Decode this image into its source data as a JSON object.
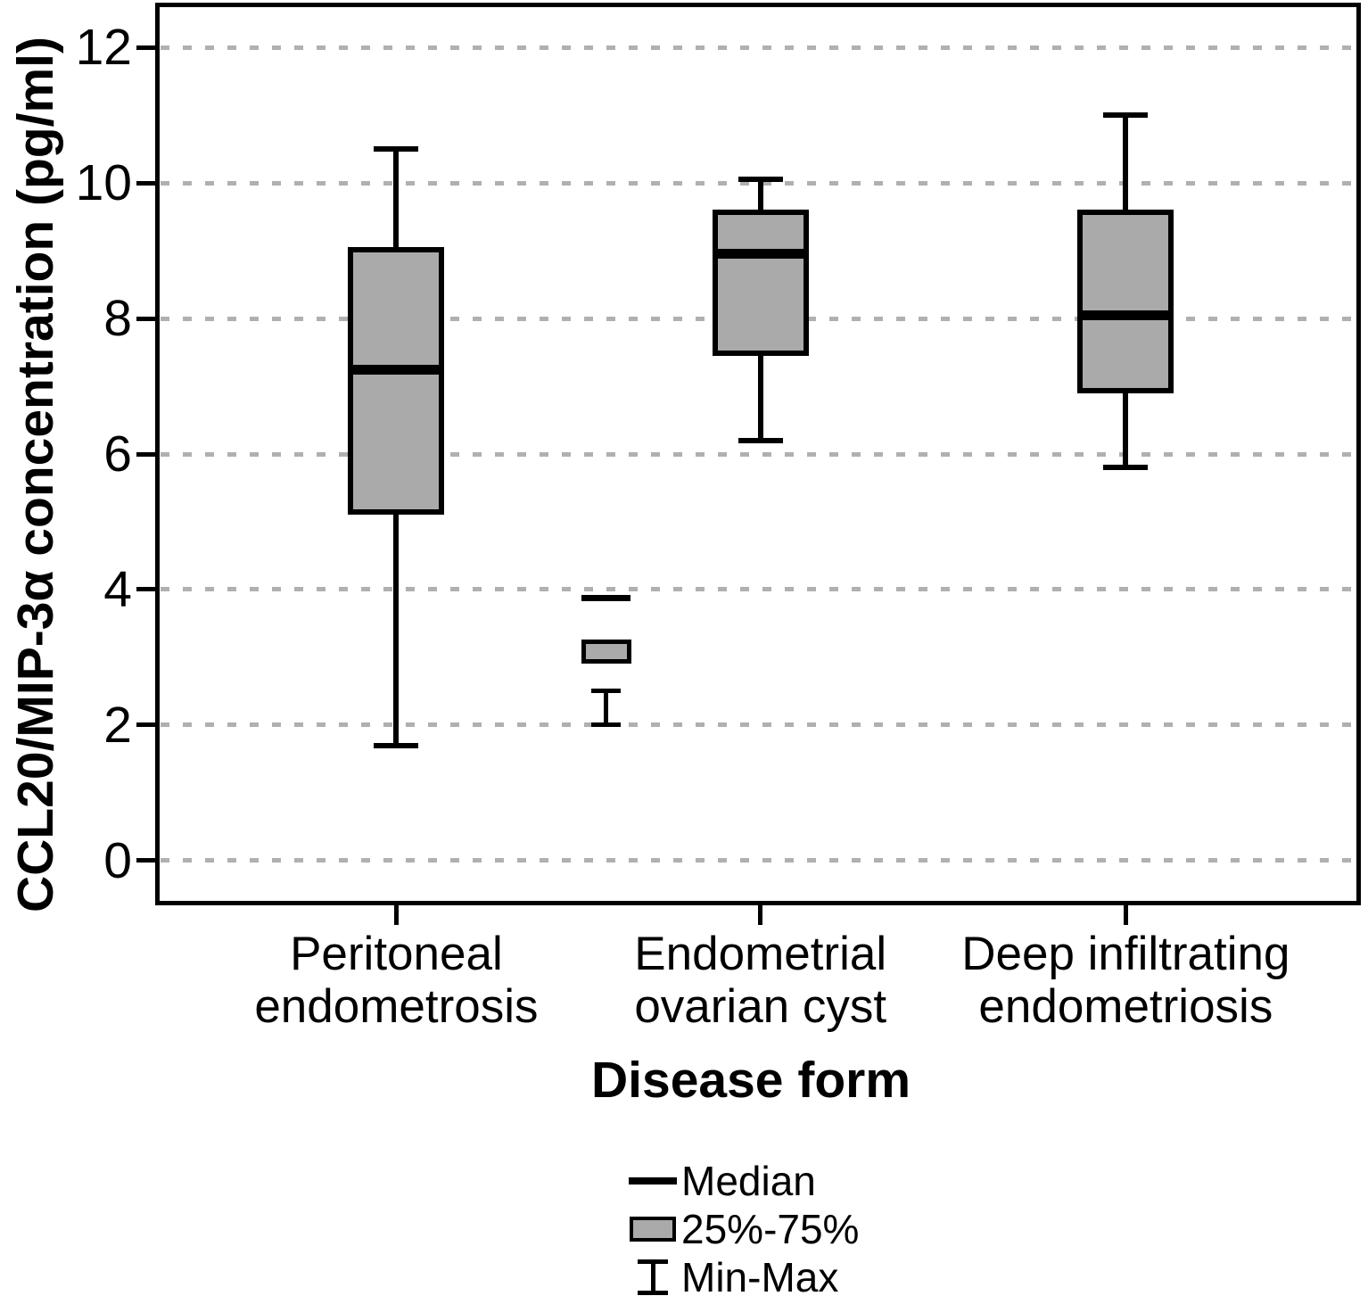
{
  "chart_data": {
    "type": "boxplot",
    "title": "",
    "xlabel": "Disease form",
    "ylabel": "CCL20/MIP-3α concentration (pg/ml)",
    "ylim": [
      -0.66,
      12.66
    ],
    "yticks": [
      0,
      2,
      4,
      6,
      8,
      10,
      12
    ],
    "grid": "horizontal-dashed",
    "legend_position": "bottom-center",
    "categories": [
      {
        "lines": [
          "Peritoneal",
          "endometrosis"
        ],
        "x_fraction": 0.2
      },
      {
        "lines": [
          "Endometrial",
          "ovarian cyst"
        ],
        "x_fraction": 0.502
      },
      {
        "lines": [
          "Deep infiltrating",
          "endometriosis"
        ],
        "x_fraction": 0.805
      }
    ],
    "series": [
      {
        "name": "Peritoneal endometrosis",
        "min": 1.7,
        "q1": 5.1,
        "median": 7.25,
        "q3": 9.05,
        "max": 10.5,
        "x_fraction": 0.2
      },
      {
        "name": "Endometrial ovarian cyst",
        "min": 6.2,
        "q1": 7.45,
        "median": 8.95,
        "q3": 9.6,
        "max": 10.05,
        "x_fraction": 0.502
      },
      {
        "name": "Deep infiltrating endometriosis",
        "min": 5.8,
        "q1": 6.9,
        "median": 8.05,
        "q3": 9.6,
        "max": 11.0,
        "x_fraction": 0.805
      }
    ],
    "inset_symbols": {
      "x_fraction": 0.374,
      "median_value": 3.88,
      "box_top": 3.26,
      "box_bottom": 2.91,
      "whisker_top": 2.54,
      "whisker_bottom": 2.04
    },
    "legend": [
      {
        "symbol": "median-line",
        "label": "Median"
      },
      {
        "symbol": "iqr-box",
        "label": "25%-75%"
      },
      {
        "symbol": "min-max-whisker",
        "label": "Min-Max"
      }
    ],
    "colors": {
      "box_fill": "#aaaaaa",
      "stroke": "#000000",
      "gridline": "#b0b0b0",
      "background": "#ffffff"
    }
  }
}
